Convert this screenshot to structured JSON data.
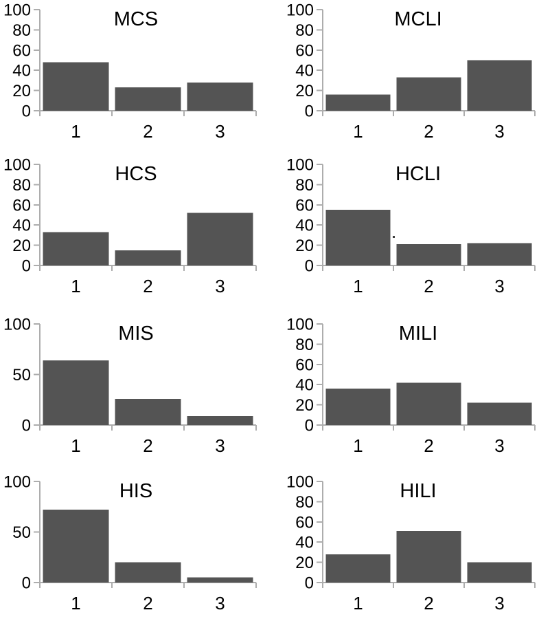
{
  "figure": {
    "background_color": "#ffffff",
    "bar_color": "#545454",
    "axis_color": "#adadad",
    "text_color": "#000000",
    "grid": "off",
    "legend": "none"
  },
  "chart_data": [
    {
      "type": "bar",
      "title": "MCS",
      "categories": [
        "1",
        "2",
        "3"
      ],
      "values": [
        48,
        23,
        28
      ],
      "yticks": [
        0,
        20,
        40,
        60,
        80,
        100
      ],
      "ylim": [
        0,
        100
      ],
      "xlabel": "",
      "ylabel": ""
    },
    {
      "type": "bar",
      "title": "MCLI",
      "categories": [
        "1",
        "2",
        "3"
      ],
      "values": [
        16,
        33,
        50
      ],
      "yticks": [
        0,
        20,
        40,
        60,
        80,
        100
      ],
      "ylim": [
        0,
        100
      ],
      "xlabel": "",
      "ylabel": ""
    },
    {
      "type": "bar",
      "title": "HCS",
      "categories": [
        "1",
        "2",
        "3"
      ],
      "values": [
        33,
        15,
        52
      ],
      "yticks": [
        0,
        20,
        40,
        60,
        80,
        100
      ],
      "ylim": [
        0,
        100
      ],
      "xlabel": "",
      "ylabel": ""
    },
    {
      "type": "bar",
      "title": "HCLI",
      "categories": [
        "1",
        "2",
        "3"
      ],
      "values": [
        55,
        21,
        22
      ],
      "yticks": [
        0,
        20,
        40,
        60,
        80,
        100
      ],
      "ylim": [
        0,
        100
      ],
      "xlabel": "",
      "ylabel": "",
      "speck": {
        "x": 179,
        "y": 118
      }
    },
    {
      "type": "bar",
      "title": "MIS",
      "categories": [
        "1",
        "2",
        "3"
      ],
      "values": [
        64,
        26,
        9
      ],
      "yticks": [
        0,
        50,
        100
      ],
      "ylim": [
        0,
        100
      ],
      "xlabel": "",
      "ylabel": ""
    },
    {
      "type": "bar",
      "title": "MILI",
      "categories": [
        "1",
        "2",
        "3"
      ],
      "values": [
        36,
        42,
        22
      ],
      "yticks": [
        0,
        20,
        40,
        60,
        80,
        100
      ],
      "ylim": [
        0,
        100
      ],
      "xlabel": "",
      "ylabel": ""
    },
    {
      "type": "bar",
      "title": "HIS",
      "categories": [
        "1",
        "2",
        "3"
      ],
      "values": [
        72,
        20,
        5
      ],
      "yticks": [
        0,
        50,
        100
      ],
      "ylim": [
        0,
        100
      ],
      "xlabel": "",
      "ylabel": ""
    },
    {
      "type": "bar",
      "title": "HILI",
      "categories": [
        "1",
        "2",
        "3"
      ],
      "values": [
        28,
        51,
        20
      ],
      "yticks": [
        0,
        20,
        40,
        60,
        80,
        100
      ],
      "ylim": [
        0,
        100
      ],
      "xlabel": "",
      "ylabel": ""
    }
  ]
}
